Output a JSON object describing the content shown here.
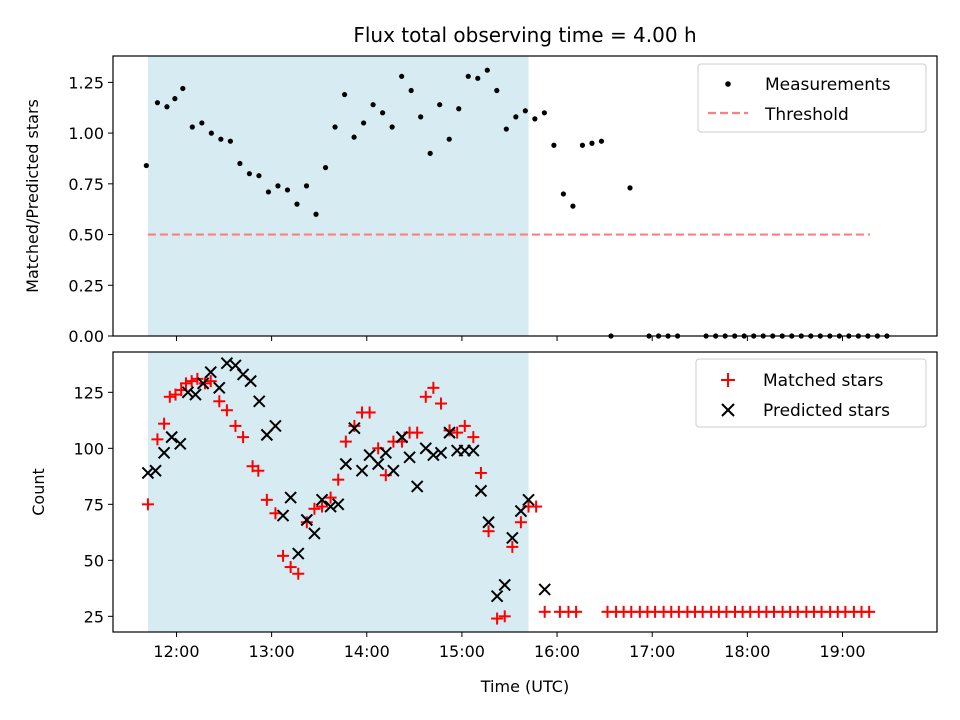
{
  "chart_data": {
    "title": "Flux total observing time = 4.00 h",
    "xlabel": "Time (UTC)",
    "x_tick_labels": [
      "12:00",
      "13:00",
      "14:00",
      "15:00",
      "16:00",
      "17:00",
      "18:00",
      "19:00"
    ],
    "x_tick_hours": [
      12,
      13,
      14,
      15,
      16,
      17,
      18,
      19
    ],
    "xlim_hours": [
      11.333,
      19.993
    ],
    "shaded_span_hours": [
      11.7,
      15.7
    ],
    "colors": {
      "shade": "#add8e6",
      "measurements": "#000000",
      "threshold": "#ff7f7f",
      "matched": "#ff0000",
      "predicted": "#000000"
    },
    "panels": [
      {
        "id": "ratio",
        "type": "scatter",
        "ylabel": "Matched/Predicted stars",
        "ylim": [
          0,
          1.38
        ],
        "y_ticks": [
          0,
          0.25,
          0.5,
          0.75,
          1,
          1.25
        ],
        "y_tick_labels": [
          "0.00",
          "0.25",
          "0.50",
          "0.75",
          "1.00",
          "1.25"
        ],
        "legend": {
          "position": "upper-right",
          "entries": [
            "Measurements",
            "Threshold"
          ]
        },
        "threshold": {
          "name": "Threshold",
          "y": 0.5,
          "x_range_hours": [
            11.7,
            19.29
          ]
        },
        "series": [
          {
            "name": "Measurements",
            "marker": "dot",
            "points": [
              [
                "11:41",
                0.84
              ],
              [
                "11:48",
                1.15
              ],
              [
                "11:54",
                1.13
              ],
              [
                "11:59",
                1.17
              ],
              [
                "12:04",
                1.22
              ],
              [
                "12:10",
                1.03
              ],
              [
                "12:16",
                1.05
              ],
              [
                "12:22",
                1.0
              ],
              [
                "12:28",
                0.97
              ],
              [
                "12:34",
                0.96
              ],
              [
                "12:40",
                0.85
              ],
              [
                "12:46",
                0.8
              ],
              [
                "12:52",
                0.79
              ],
              [
                "12:58",
                0.71
              ],
              [
                "13:04",
                0.74
              ],
              [
                "13:10",
                0.72
              ],
              [
                "13:16",
                0.65
              ],
              [
                "13:22",
                0.74
              ],
              [
                "13:28",
                0.6
              ],
              [
                "13:34",
                0.83
              ],
              [
                "13:40",
                1.03
              ],
              [
                "13:46",
                1.19
              ],
              [
                "13:52",
                0.98
              ],
              [
                "13:58",
                1.05
              ],
              [
                "14:04",
                1.14
              ],
              [
                "14:10",
                1.1
              ],
              [
                "14:16",
                1.03
              ],
              [
                "14:22",
                1.28
              ],
              [
                "14:28",
                1.21
              ],
              [
                "14:34",
                1.08
              ],
              [
                "14:40",
                0.9
              ],
              [
                "14:46",
                1.14
              ],
              [
                "14:52",
                0.97
              ],
              [
                "14:58",
                1.12
              ],
              [
                "15:04",
                1.28
              ],
              [
                "15:10",
                1.27
              ],
              [
                "15:16",
                1.31
              ],
              [
                "15:22",
                1.21
              ],
              [
                "15:28",
                1.02
              ],
              [
                "15:34",
                1.08
              ],
              [
                "15:40",
                1.11
              ],
              [
                "15:46",
                1.07
              ],
              [
                "15:52",
                1.1
              ],
              [
                "15:58",
                0.94
              ],
              [
                "16:04",
                0.7
              ],
              [
                "16:10",
                0.64
              ],
              [
                "16:16",
                0.94
              ],
              [
                "16:22",
                0.95
              ],
              [
                "16:28",
                0.96
              ],
              [
                "16:34",
                0.0
              ],
              [
                "16:46",
                0.73
              ],
              [
                "16:58",
                0.0
              ],
              [
                "17:04",
                0.0
              ],
              [
                "17:10",
                0.0
              ],
              [
                "17:16",
                0.0
              ],
              [
                "17:34",
                0.0
              ],
              [
                "17:40",
                0.0
              ],
              [
                "17:46",
                0.0
              ],
              [
                "17:52",
                0.0
              ],
              [
                "17:58",
                0.0
              ],
              [
                "18:04",
                0.0
              ],
              [
                "18:10",
                0.0
              ],
              [
                "18:16",
                0.0
              ],
              [
                "18:22",
                0.0
              ],
              [
                "18:28",
                0.0
              ],
              [
                "18:34",
                0.0
              ],
              [
                "18:40",
                0.0
              ],
              [
                "18:46",
                0.0
              ],
              [
                "18:52",
                0.0
              ],
              [
                "18:58",
                0.0
              ],
              [
                "19:04",
                0.0
              ],
              [
                "19:10",
                0.0
              ],
              [
                "19:16",
                0.0
              ],
              [
                "19:22",
                0.0
              ],
              [
                "19:28",
                0.0
              ]
            ]
          }
        ]
      },
      {
        "id": "counts",
        "type": "scatter",
        "ylabel": "Count",
        "ylim": [
          18,
          143
        ],
        "y_ticks": [
          25,
          50,
          75,
          100,
          125
        ],
        "y_tick_labels": [
          "25",
          "50",
          "75",
          "100",
          "125"
        ],
        "legend": {
          "position": "upper-right",
          "entries": [
            "Matched stars",
            "Predicted stars"
          ]
        },
        "series": [
          {
            "name": "Matched stars",
            "marker": "plus",
            "points": [
              [
                11.7,
                75
              ],
              [
                11.8,
                104
              ],
              [
                11.87,
                111
              ],
              [
                11.93,
                123
              ],
              [
                11.99,
                124
              ],
              [
                12.05,
                126
              ],
              [
                12.1,
                129
              ],
              [
                12.16,
                130
              ],
              [
                12.22,
                131
              ],
              [
                12.3,
                129
              ],
              [
                12.36,
                130
              ],
              [
                12.45,
                121
              ],
              [
                12.53,
                117
              ],
              [
                12.62,
                110
              ],
              [
                12.7,
                105
              ],
              [
                12.8,
                92
              ],
              [
                12.86,
                90
              ],
              [
                12.95,
                77
              ],
              [
                13.04,
                71
              ],
              [
                13.12,
                52
              ],
              [
                13.2,
                47
              ],
              [
                13.28,
                44
              ],
              [
                13.37,
                67
              ],
              [
                13.45,
                73
              ],
              [
                13.53,
                74
              ],
              [
                13.62,
                78
              ],
              [
                13.7,
                86
              ],
              [
                13.78,
                103
              ],
              [
                13.87,
                110
              ],
              [
                13.95,
                116
              ],
              [
                14.03,
                116
              ],
              [
                14.12,
                100
              ],
              [
                14.2,
                88
              ],
              [
                14.28,
                103
              ],
              [
                14.37,
                103
              ],
              [
                14.45,
                107
              ],
              [
                14.53,
                107
              ],
              [
                14.62,
                123
              ],
              [
                14.7,
                127
              ],
              [
                14.78,
                120
              ],
              [
                14.87,
                108
              ],
              [
                14.95,
                107
              ],
              [
                15.03,
                110
              ],
              [
                15.12,
                105
              ],
              [
                15.2,
                89
              ],
              [
                15.28,
                63
              ],
              [
                15.37,
                24
              ],
              [
                15.45,
                25
              ],
              [
                15.53,
                56
              ],
              [
                15.62,
                67
              ],
              [
                15.7,
                74
              ],
              [
                15.78,
                74
              ],
              [
                15.87,
                27
              ],
              [
                16.03,
                27
              ],
              [
                16.12,
                27
              ],
              [
                16.2,
                27
              ],
              [
                16.53,
                27
              ],
              [
                16.62,
                27
              ],
              [
                16.7,
                27
              ],
              [
                16.78,
                27
              ],
              [
                16.87,
                27
              ],
              [
                16.95,
                27
              ],
              [
                17.03,
                27
              ],
              [
                17.12,
                27
              ],
              [
                17.2,
                27
              ],
              [
                17.28,
                27
              ],
              [
                17.37,
                27
              ],
              [
                17.45,
                27
              ],
              [
                17.53,
                27
              ],
              [
                17.62,
                27
              ],
              [
                17.7,
                27
              ],
              [
                17.78,
                27
              ],
              [
                17.87,
                27
              ],
              [
                17.95,
                27
              ],
              [
                18.03,
                27
              ],
              [
                18.12,
                27
              ],
              [
                18.2,
                27
              ],
              [
                18.28,
                27
              ],
              [
                18.37,
                27
              ],
              [
                18.45,
                27
              ],
              [
                18.53,
                27
              ],
              [
                18.62,
                27
              ],
              [
                18.7,
                27
              ],
              [
                18.78,
                27
              ],
              [
                18.87,
                27
              ],
              [
                18.95,
                27
              ],
              [
                19.03,
                27
              ],
              [
                19.12,
                27
              ],
              [
                19.2,
                27
              ],
              [
                19.28,
                27
              ]
            ]
          },
          {
            "name": "Predicted stars",
            "marker": "x",
            "points": [
              [
                11.7,
                89
              ],
              [
                11.78,
                90
              ],
              [
                11.87,
                98
              ],
              [
                11.95,
                105
              ],
              [
                12.04,
                102
              ],
              [
                12.12,
                125
              ],
              [
                12.2,
                124
              ],
              [
                12.28,
                129
              ],
              [
                12.36,
                134
              ],
              [
                12.45,
                127
              ],
              [
                12.53,
                138
              ],
              [
                12.62,
                137
              ],
              [
                12.7,
                133
              ],
              [
                12.78,
                130
              ],
              [
                12.87,
                121
              ],
              [
                12.95,
                106
              ],
              [
                13.04,
                110
              ],
              [
                13.12,
                70
              ],
              [
                13.2,
                78
              ],
              [
                13.28,
                53
              ],
              [
                13.37,
                68
              ],
              [
                13.45,
                62
              ],
              [
                13.53,
                77
              ],
              [
                13.62,
                74
              ],
              [
                13.7,
                75
              ],
              [
                13.78,
                93
              ],
              [
                13.87,
                109
              ],
              [
                13.95,
                90
              ],
              [
                14.03,
                97
              ],
              [
                14.12,
                93
              ],
              [
                14.2,
                98
              ],
              [
                14.28,
                90
              ],
              [
                14.37,
                105
              ],
              [
                14.45,
                96
              ],
              [
                14.53,
                83
              ],
              [
                14.62,
                100
              ],
              [
                14.7,
                97
              ],
              [
                14.78,
                98
              ],
              [
                14.87,
                107
              ],
              [
                14.95,
                99
              ],
              [
                15.03,
                99
              ],
              [
                15.12,
                99
              ],
              [
                15.2,
                81
              ],
              [
                15.28,
                67
              ],
              [
                15.37,
                34
              ],
              [
                15.45,
                39
              ],
              [
                15.53,
                60
              ],
              [
                15.62,
                72
              ],
              [
                15.7,
                77
              ],
              [
                15.87,
                37
              ]
            ]
          }
        ]
      }
    ]
  }
}
